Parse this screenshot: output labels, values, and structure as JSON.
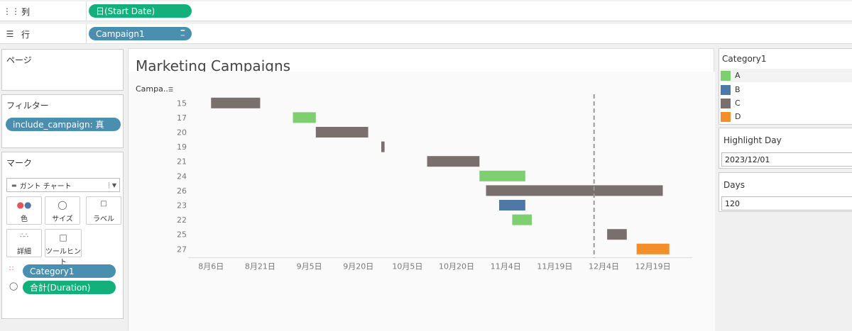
{
  "shelves": {
    "columns": {
      "label": "列",
      "pill": "日(Start Date)"
    },
    "rows": {
      "label": "行",
      "pill": "Campaign1"
    }
  },
  "pages_panel": {
    "title": "ページ"
  },
  "filters_panel": {
    "title": "フィルター",
    "pill": "include_campaign: 真"
  },
  "marks_panel": {
    "title": "マーク",
    "mark_type": "ガント チャート",
    "buttons": [
      "色",
      "サイズ",
      "ラベル",
      "詳細",
      "ツールヒント"
    ],
    "fields": [
      {
        "icon": "color-icon",
        "label": "Category1",
        "color": "#4a8fb0"
      },
      {
        "icon": "size-icon",
        "label": "合計(Duration)",
        "color": "#14b07c"
      }
    ]
  },
  "legend": {
    "title": "Category1",
    "items": [
      {
        "label": "A",
        "color": "#7dcf6f"
      },
      {
        "label": "B",
        "color": "#4e79a7"
      },
      {
        "label": "C",
        "color": "#796f6c"
      },
      {
        "label": "D",
        "color": "#f28e2b"
      }
    ]
  },
  "highlight_day": {
    "title": "Highlight Day",
    "value": "2023/12/01"
  },
  "days": {
    "title": "Days",
    "value": "120"
  },
  "chart_data": {
    "type": "gantt",
    "title": "Marketing Campaigns",
    "y_header": "Campa..",
    "x_ticks": [
      "8月6日",
      "8月21日",
      "9月5日",
      "9月20日",
      "10月5日",
      "10月20日",
      "11月4日",
      "11月19日",
      "12月4日",
      "12月19日"
    ],
    "x_tick_dates": [
      "2023-08-06",
      "2023-08-21",
      "2023-09-05",
      "2023-09-20",
      "2023-10-05",
      "2023-10-20",
      "2023-11-04",
      "2023-11-19",
      "2023-12-04",
      "2023-12-19"
    ],
    "x_range": [
      "2023-07-30",
      "2023-12-31"
    ],
    "reference_line": "2023-12-01",
    "rows": [
      {
        "campaign": "15",
        "category": "C",
        "start": "2023-08-06",
        "end": "2023-08-21"
      },
      {
        "campaign": "17",
        "category": "A",
        "start": "2023-08-31",
        "end": "2023-09-07"
      },
      {
        "campaign": "20",
        "category": "C",
        "start": "2023-09-07",
        "end": "2023-09-23"
      },
      {
        "campaign": "19",
        "category": "C",
        "start": "2023-09-27",
        "end": "2023-09-28"
      },
      {
        "campaign": "21",
        "category": "C",
        "start": "2023-10-11",
        "end": "2023-10-27"
      },
      {
        "campaign": "24",
        "category": "A",
        "start": "2023-10-27",
        "end": "2023-11-10"
      },
      {
        "campaign": "26",
        "category": "C",
        "start": "2023-10-29",
        "end": "2023-12-22"
      },
      {
        "campaign": "23",
        "category": "B",
        "start": "2023-11-02",
        "end": "2023-11-10"
      },
      {
        "campaign": "22",
        "category": "A",
        "start": "2023-11-06",
        "end": "2023-11-12"
      },
      {
        "campaign": "25",
        "category": "C",
        "start": "2023-12-05",
        "end": "2023-12-11"
      },
      {
        "campaign": "27",
        "category": "D",
        "start": "2023-12-14",
        "end": "2023-12-24"
      }
    ]
  }
}
